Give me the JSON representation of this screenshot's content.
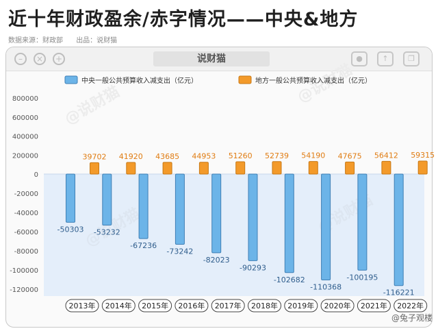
{
  "header": {
    "title": "近十年财政盈余/赤字情况——中央&地方",
    "source": "数据来源：财政部",
    "publisher": "出品：说财猫"
  },
  "window": {
    "brand": "说财猫",
    "watermark_tr": "@说财猫",
    "watermark_ml": "@说财猫",
    "footer_watermark": "@兔子观楼"
  },
  "icons": {
    "minimize": "minimize-icon",
    "close": "close-icon",
    "add": "add-icon",
    "record": "record-icon",
    "share": "share-icon",
    "copy": "copy-icon"
  },
  "colors": {
    "central": "#6cb4e8",
    "local": "#f39a2a",
    "negative_bg": "#e4eefa",
    "label_central": "#2f5d8c",
    "label_local": "#e07c12"
  },
  "chart_data": {
    "type": "bar",
    "title": "",
    "xlabel": "",
    "ylabel": "",
    "categories": [
      "2013年",
      "2014年",
      "2015年",
      "2016年",
      "2017年",
      "2018年",
      "2019年",
      "2020年",
      "2021年",
      "2022年"
    ],
    "series": [
      {
        "name": "中央一般公共预算收入减支出（亿元）",
        "values": [
          -50303,
          -53232,
          -67236,
          -73242,
          -82023,
          -90293,
          -102682,
          -110368,
          -100195,
          -116221
        ]
      },
      {
        "name": "地方一般公共预算收入减支出（亿元）",
        "values": [
          39702,
          41920,
          43685,
          44953,
          51260,
          52739,
          54190,
          47675,
          56412,
          59315
        ]
      }
    ],
    "y_axis": {
      "positive_ticks": [
        0,
        200000,
        400000,
        600000,
        800000
      ],
      "negative_ticks": [
        -20000,
        -40000,
        -60000,
        -80000,
        -100000,
        -120000
      ]
    },
    "legend_position": "top",
    "grid": false
  }
}
